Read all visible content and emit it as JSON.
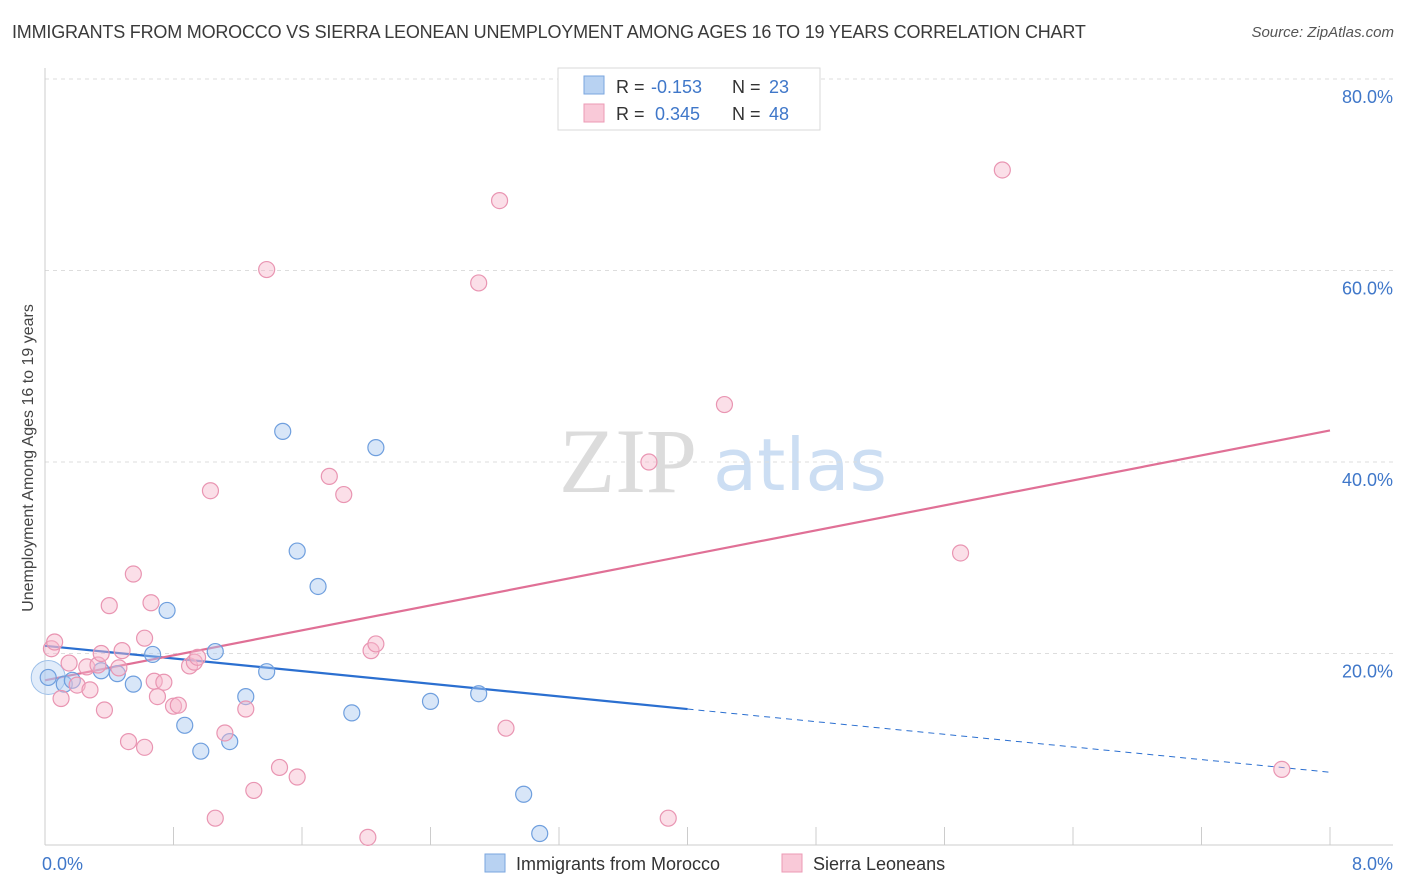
{
  "title": "IMMIGRANTS FROM MOROCCO VS SIERRA LEONEAN UNEMPLOYMENT AMONG AGES 16 TO 19 YEARS CORRELATION CHART",
  "source": "Source: ZipAtlas.com",
  "watermark": {
    "zip": "ZIP",
    "atlas": "atlas"
  },
  "colors": {
    "series_a": "#a9c8f0",
    "series_a_line": "#2b6fd0",
    "series_b": "#f6b8cb",
    "series_b_line": "#e07096",
    "axis_label": "#3f77c9",
    "grid": "#dddddd"
  },
  "legend_box": [
    {
      "r_label": "R =",
      "r_value": "-0.153",
      "n_label": "N =",
      "n_value": "23"
    },
    {
      "r_label": "R =",
      "r_value": "0.345",
      "n_label": "N =",
      "n_value": "48"
    }
  ],
  "chart_data": {
    "type": "scatter",
    "title": "IMMIGRANTS FROM MOROCCO VS SIERRA LEONEAN UNEMPLOYMENT AMONG AGES 16 TO 19 YEARS CORRELATION CHART",
    "xlabel": "",
    "ylabel": "Unemployment Among Ages 16 to 19 years",
    "xlim": [
      0,
      8
    ],
    "ylim": [
      0,
      80
    ],
    "x_tick_labels": [
      "0.0%",
      "8.0%"
    ],
    "y_ticks": [
      20,
      40,
      60,
      80
    ],
    "y_tick_labels": [
      "20.0%",
      "40.0%",
      "60.0%",
      "80.0%"
    ],
    "legend_position": "bottom-center",
    "series": [
      {
        "name": "Immigrants from Morocco",
        "points": [
          [
            0.02,
            17.5
          ],
          [
            0.12,
            16.8
          ],
          [
            0.17,
            17.2
          ],
          [
            0.35,
            18.2
          ],
          [
            0.45,
            17.9
          ],
          [
            0.55,
            16.8
          ],
          [
            0.67,
            19.9
          ],
          [
            0.76,
            24.5
          ],
          [
            0.87,
            12.5
          ],
          [
            0.97,
            9.8
          ],
          [
            1.06,
            20.2
          ],
          [
            1.15,
            10.8
          ],
          [
            1.25,
            15.5
          ],
          [
            1.38,
            18.1
          ],
          [
            1.48,
            43.2
          ],
          [
            1.57,
            30.7
          ],
          [
            1.7,
            27.0
          ],
          [
            1.91,
            13.8
          ],
          [
            2.06,
            41.5
          ],
          [
            2.4,
            15.0
          ],
          [
            2.7,
            15.8
          ],
          [
            2.98,
            5.3
          ],
          [
            3.08,
            1.2
          ]
        ],
        "trend": {
          "x0": 0.0,
          "y0": 20.8,
          "x1": 4.0,
          "y1": 14.2,
          "dashed_to_x": 8.0,
          "dashed_to_y": 7.6
        }
      },
      {
        "name": "Sierra Leoneans",
        "points": [
          [
            0.04,
            20.5
          ],
          [
            0.06,
            21.2
          ],
          [
            0.1,
            15.3
          ],
          [
            0.15,
            19.0
          ],
          [
            0.2,
            16.7
          ],
          [
            0.26,
            18.6
          ],
          [
            0.28,
            16.2
          ],
          [
            0.33,
            18.8
          ],
          [
            0.35,
            20.0
          ],
          [
            0.37,
            14.1
          ],
          [
            0.4,
            25.0
          ],
          [
            0.46,
            18.5
          ],
          [
            0.48,
            20.3
          ],
          [
            0.52,
            10.8
          ],
          [
            0.55,
            28.3
          ],
          [
            0.62,
            21.6
          ],
          [
            0.62,
            10.2
          ],
          [
            0.66,
            25.3
          ],
          [
            0.68,
            17.1
          ],
          [
            0.7,
            15.5
          ],
          [
            0.74,
            17.0
          ],
          [
            0.8,
            14.5
          ],
          [
            0.83,
            14.6
          ],
          [
            0.9,
            18.7
          ],
          [
            0.93,
            19.1
          ],
          [
            0.95,
            19.6
          ],
          [
            1.03,
            37.0
          ],
          [
            1.06,
            2.8
          ],
          [
            1.12,
            11.7
          ],
          [
            1.25,
            14.2
          ],
          [
            1.3,
            5.7
          ],
          [
            1.38,
            60.1
          ],
          [
            1.46,
            8.1
          ],
          [
            1.57,
            7.1
          ],
          [
            1.77,
            38.5
          ],
          [
            1.86,
            36.6
          ],
          [
            2.01,
            0.8
          ],
          [
            2.03,
            20.3
          ],
          [
            2.06,
            21.0
          ],
          [
            2.7,
            58.7
          ],
          [
            2.83,
            67.3
          ],
          [
            2.87,
            12.2
          ],
          [
            3.76,
            40.0
          ],
          [
            3.88,
            2.8
          ],
          [
            4.23,
            46.0
          ],
          [
            5.7,
            30.5
          ],
          [
            5.96,
            70.5
          ],
          [
            7.7,
            7.9
          ]
        ],
        "trend": {
          "x0": 0.0,
          "y0": 17.2,
          "x1": 8.0,
          "y1": 43.3
        }
      }
    ]
  }
}
